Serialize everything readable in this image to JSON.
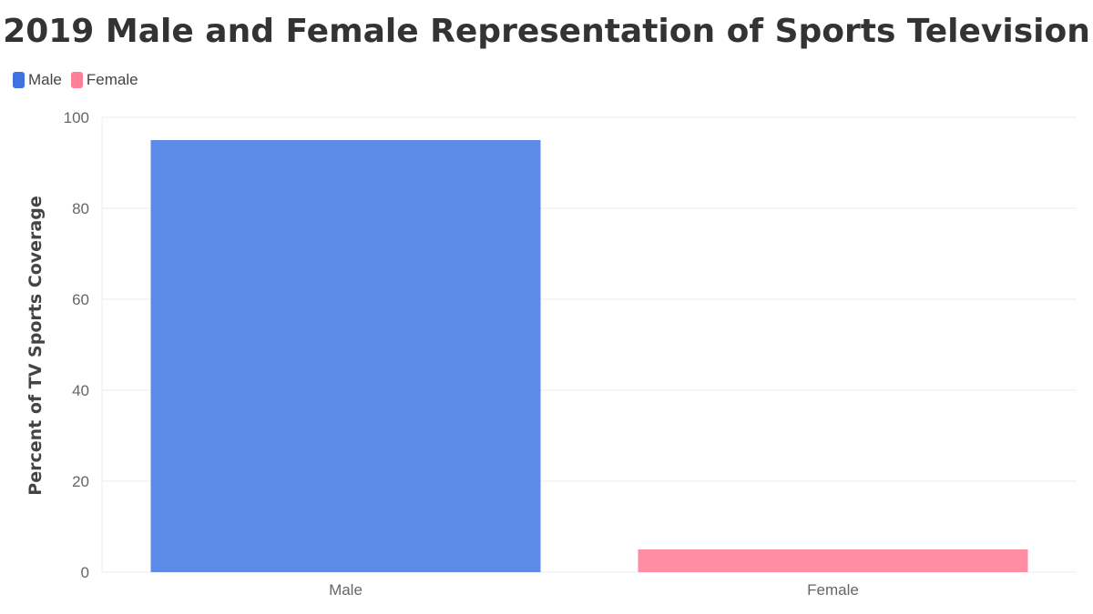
{
  "chart_data": {
    "type": "bar",
    "title": "2019 Male and Female Representation of Sports Television",
    "xlabel": "",
    "ylabel": "Percent of TV Sports Coverage",
    "categories": [
      "Male",
      "Female"
    ],
    "values": [
      95,
      5
    ],
    "colors": [
      "#5b8be6",
      "#ff8ea5"
    ],
    "ylim": [
      0,
      100
    ],
    "yticks": [
      "0",
      "20",
      "40",
      "60",
      "80",
      "100"
    ],
    "legend": {
      "placement": "top-left",
      "entries": [
        {
          "label": "Male",
          "color": "#3f72de"
        },
        {
          "label": "Female",
          "color": "#ff7f99"
        }
      ]
    },
    "grid": true
  }
}
